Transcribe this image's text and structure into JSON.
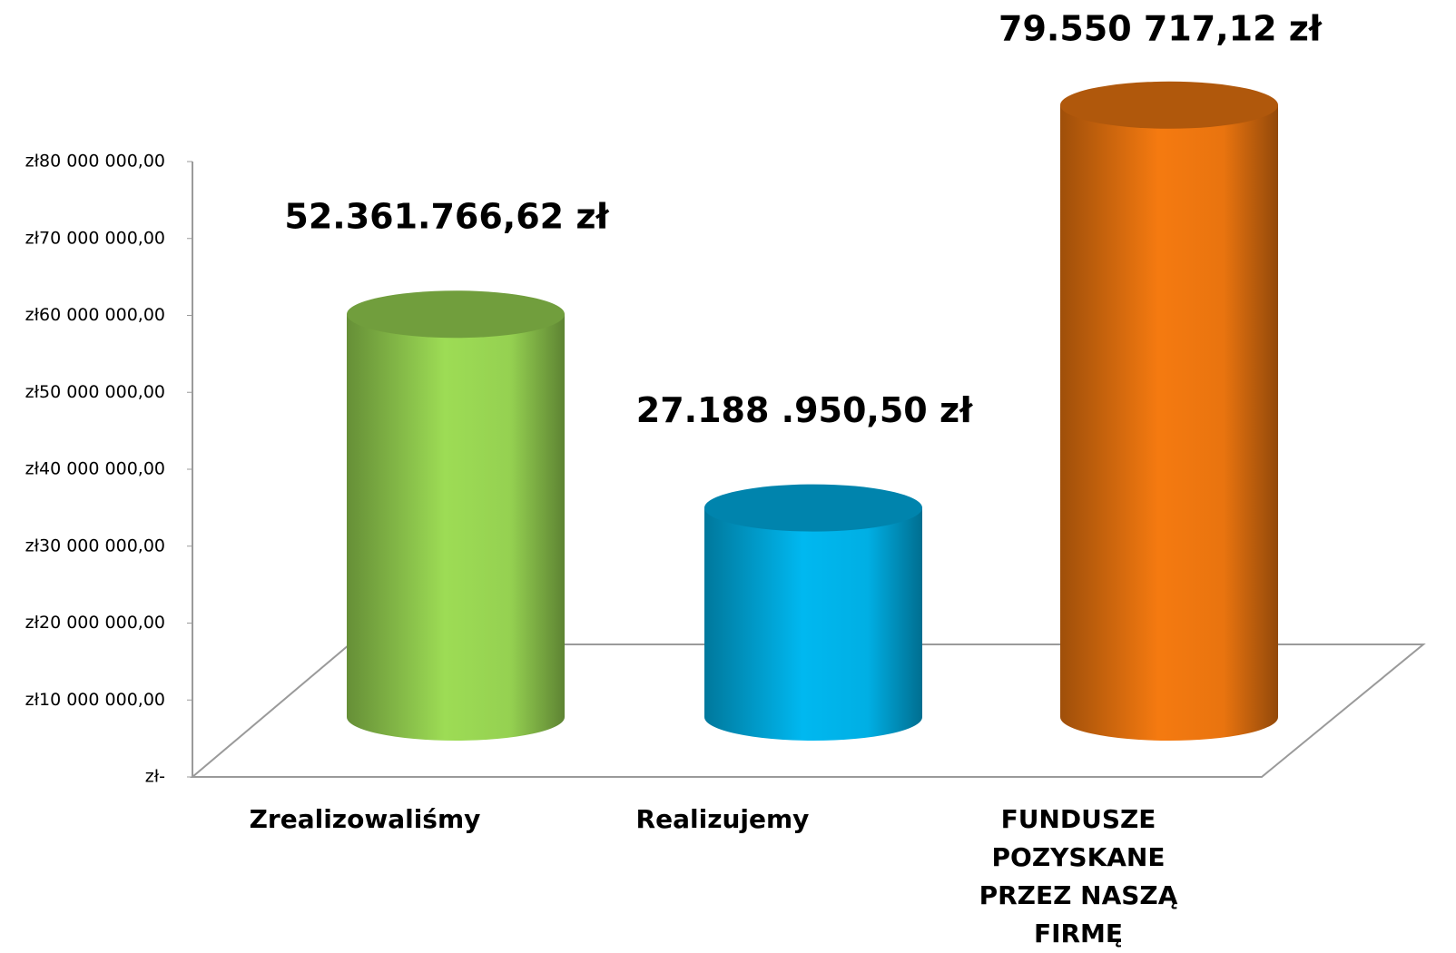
{
  "chart_data": {
    "type": "cylinder",
    "categories": [
      "Zrealizowaliśmy",
      "Realizujemy",
      "FUNDUSZE POZYSKANE PRZEZ NASZĄ FIRMĘ"
    ],
    "values": [
      52361766.62,
      27188950.5,
      79550717.12
    ],
    "value_labels": [
      "52.361.766,62 zł",
      "27.188 .950,50 zł",
      "79.550 717,12 zł"
    ],
    "colors": [
      "#9ddc55",
      "#00b8f0",
      "#f57a10"
    ],
    "ylim": [
      0,
      80000000
    ],
    "yticks": [
      {
        "value": 0,
        "label": "zł-"
      },
      {
        "value": 10000000,
        "label": "zł10 000 000,00"
      },
      {
        "value": 20000000,
        "label": "zł20 000 000,00"
      },
      {
        "value": 30000000,
        "label": "zł30 000 000,00"
      },
      {
        "value": 40000000,
        "label": "zł40 000 000,00"
      },
      {
        "value": 50000000,
        "label": "zł50 000 000,00"
      },
      {
        "value": 60000000,
        "label": "zł60 000 000,00"
      },
      {
        "value": 70000000,
        "label": "zł70 000 000,00"
      },
      {
        "value": 80000000,
        "label": "zł80 000 000,00"
      }
    ]
  }
}
